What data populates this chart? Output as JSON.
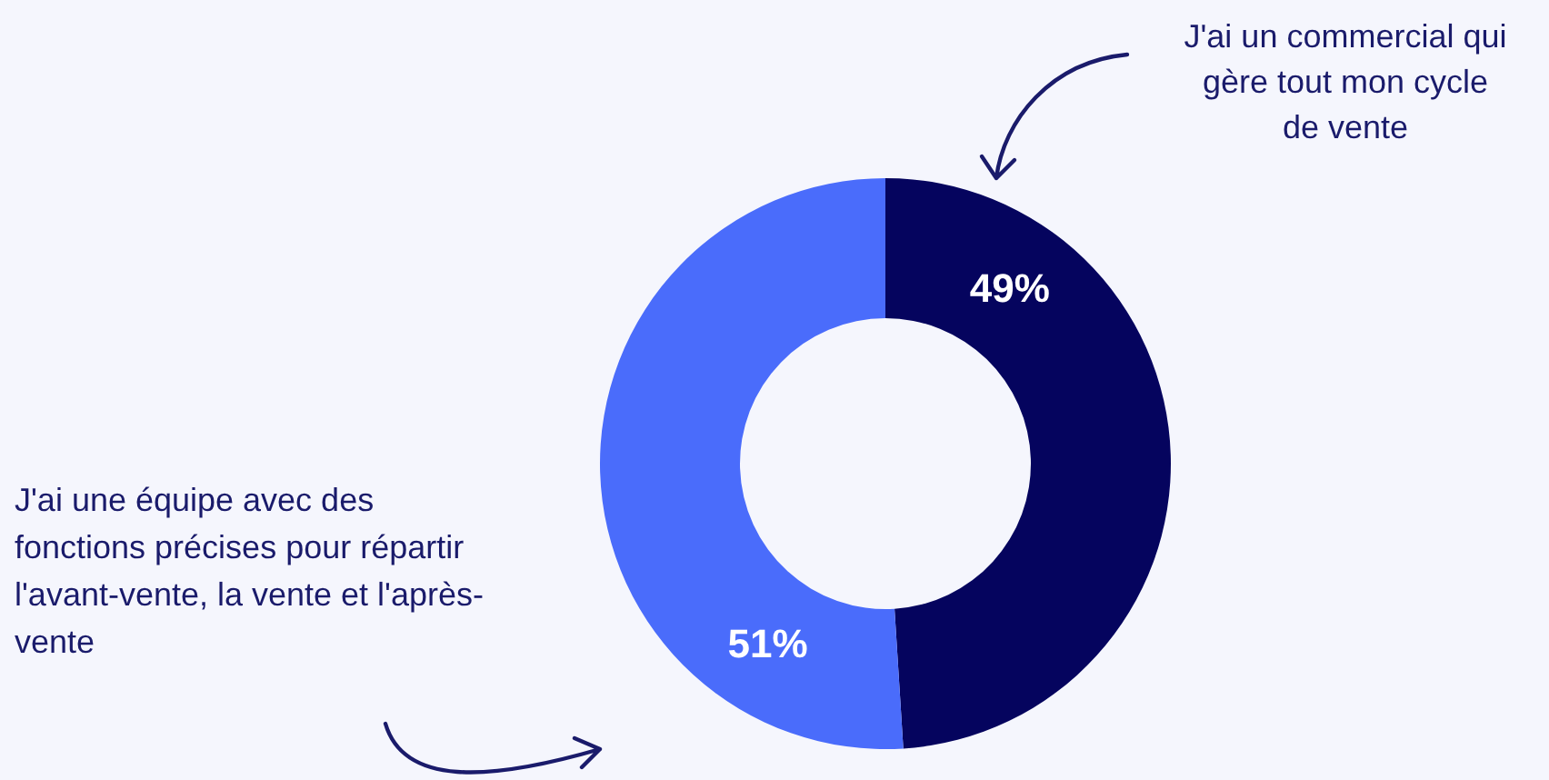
{
  "chart_data": {
    "type": "donut",
    "categories": [
      "J'ai un commercial qui gère tout mon cycle de vente",
      "J'ai une équipe avec des fonctions précises pour répartir l'avant-vente, la vente et l'après-vente"
    ],
    "values": [
      49,
      51
    ],
    "colors": [
      "#05045e",
      "#4a6cfb"
    ],
    "value_labels": [
      "49%",
      "51%"
    ],
    "legend": false
  }
}
